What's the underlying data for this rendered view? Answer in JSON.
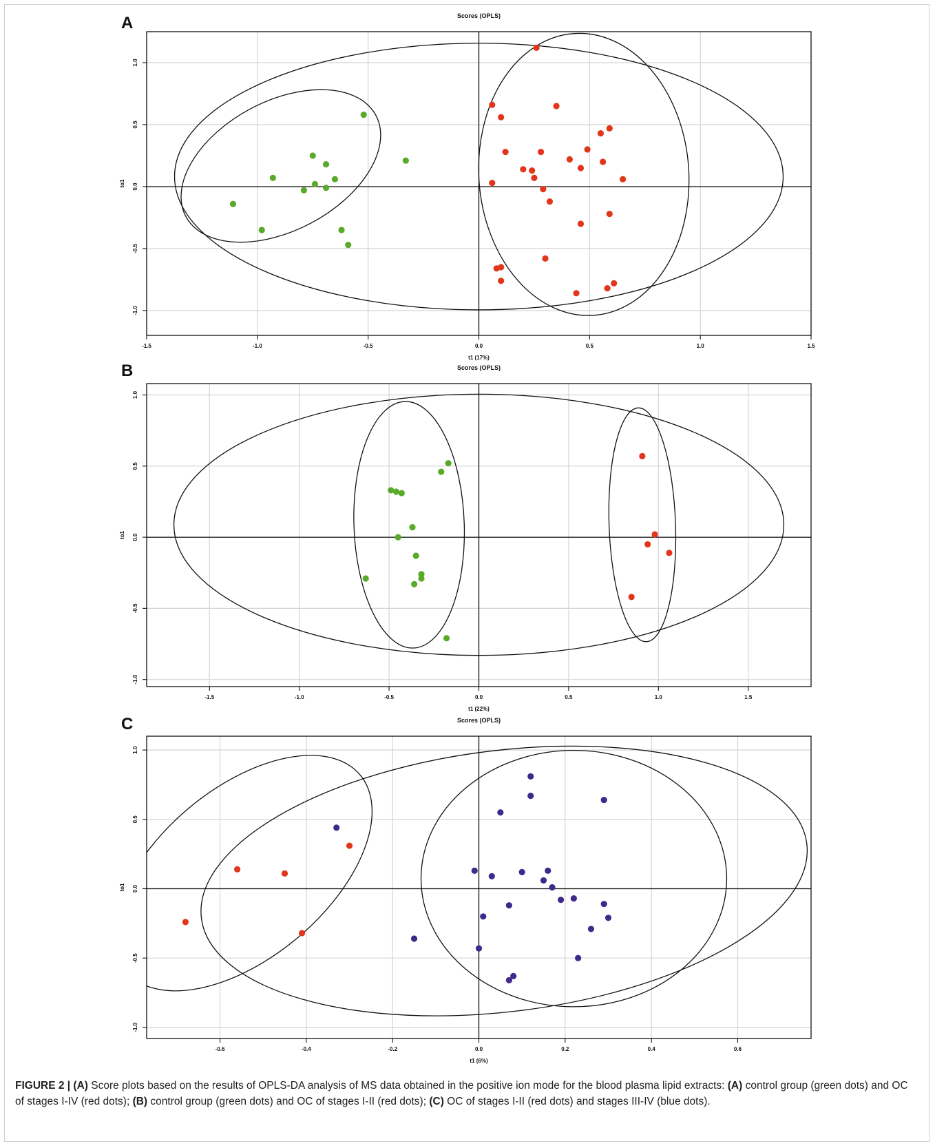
{
  "chart_data": [
    {
      "id": "A",
      "panel_letter": "A",
      "type": "scatter",
      "title": "Scores (OPLS)",
      "xlabel": "t1 (17%)",
      "ylabel": "to1",
      "xlim": [
        -1.5,
        1.5
      ],
      "ylim": [
        -1.2,
        1.25
      ],
      "xticks": [
        -1.5,
        -1.0,
        -0.5,
        0.0,
        0.5,
        1.0,
        1.5
      ],
      "yticks": [
        -1.0,
        -0.5,
        0.0,
        0.5,
        1.0
      ],
      "grid": true,
      "series": [
        {
          "color": "#5aaa2a",
          "points": [
            [
              -0.52,
              0.58
            ],
            [
              -0.33,
              0.21
            ],
            [
              -0.75,
              0.25
            ],
            [
              -0.69,
              0.18
            ],
            [
              -0.93,
              0.07
            ],
            [
              -0.65,
              0.06
            ],
            [
              -0.74,
              0.02
            ],
            [
              -0.69,
              -0.01
            ],
            [
              -0.79,
              -0.03
            ],
            [
              -1.11,
              -0.14
            ],
            [
              -0.98,
              -0.35
            ],
            [
              -0.62,
              -0.35
            ],
            [
              -0.59,
              -0.47
            ]
          ]
        },
        {
          "color": "#e2361a",
          "points": [
            [
              0.26,
              1.12
            ],
            [
              0.06,
              0.66
            ],
            [
              0.35,
              0.65
            ],
            [
              0.1,
              0.56
            ],
            [
              0.59,
              0.47
            ],
            [
              0.55,
              0.43
            ],
            [
              0.12,
              0.28
            ],
            [
              0.28,
              0.28
            ],
            [
              0.49,
              0.3
            ],
            [
              0.41,
              0.22
            ],
            [
              0.56,
              0.2
            ],
            [
              0.2,
              0.14
            ],
            [
              0.24,
              0.13
            ],
            [
              0.46,
              0.15
            ],
            [
              0.25,
              0.07
            ],
            [
              0.65,
              0.06
            ],
            [
              0.06,
              0.03
            ],
            [
              0.29,
              -0.02
            ],
            [
              0.32,
              -0.12
            ],
            [
              0.59,
              -0.22
            ],
            [
              0.46,
              -0.3
            ],
            [
              0.3,
              -0.58
            ],
            [
              0.08,
              -0.66
            ],
            [
              0.1,
              -0.65
            ],
            [
              0.1,
              -0.76
            ],
            [
              0.61,
              -0.78
            ],
            [
              0.58,
              -0.82
            ],
            [
              0.44,
              -0.86
            ]
          ]
        }
      ]
    },
    {
      "id": "B",
      "panel_letter": "B",
      "type": "scatter",
      "title": "Scores (OPLS)",
      "xlabel": "t1 (22%)",
      "ylabel": "to1",
      "xlim": [
        -1.85,
        1.85
      ],
      "ylim": [
        -1.05,
        1.08
      ],
      "xticks": [
        -1.5,
        -1.0,
        -0.5,
        0.0,
        0.5,
        1.0,
        1.5
      ],
      "yticks": [
        -1.0,
        -0.5,
        0.0,
        0.5,
        1.0
      ],
      "grid": true,
      "series": [
        {
          "color": "#5aaa2a",
          "points": [
            [
              -0.17,
              0.52
            ],
            [
              -0.21,
              0.46
            ],
            [
              -0.49,
              0.33
            ],
            [
              -0.46,
              0.32
            ],
            [
              -0.43,
              0.31
            ],
            [
              -0.37,
              0.07
            ],
            [
              -0.45,
              0.0
            ],
            [
              -0.35,
              -0.13
            ],
            [
              -0.32,
              -0.26
            ],
            [
              -0.32,
              -0.29
            ],
            [
              -0.63,
              -0.29
            ],
            [
              -0.36,
              -0.33
            ],
            [
              -0.18,
              -0.71
            ]
          ]
        },
        {
          "color": "#e2361a",
          "points": [
            [
              0.91,
              0.57
            ],
            [
              0.98,
              0.02
            ],
            [
              0.94,
              -0.05
            ],
            [
              1.06,
              -0.11
            ],
            [
              0.85,
              -0.42
            ]
          ]
        }
      ]
    },
    {
      "id": "C",
      "panel_letter": "C",
      "type": "scatter",
      "title": "Scores (OPLS)",
      "xlabel": "t1 (6%)",
      "ylabel": "to1",
      "xlim": [
        -0.77,
        0.77
      ],
      "ylim": [
        -1.08,
        1.1
      ],
      "xticks": [
        -0.6,
        -0.4,
        -0.2,
        0.0,
        0.2,
        0.4,
        0.6
      ],
      "yticks": [
        -1.0,
        -0.5,
        0.0,
        0.5,
        1.0
      ],
      "grid": true,
      "series": [
        {
          "color": "#e2361a",
          "points": [
            [
              -0.68,
              -0.24
            ],
            [
              -0.56,
              0.14
            ],
            [
              -0.45,
              0.11
            ],
            [
              -0.41,
              -0.32
            ],
            [
              -0.3,
              0.31
            ]
          ]
        },
        {
          "color": "#3f2a8c",
          "points": [
            [
              -0.33,
              0.44
            ],
            [
              -0.15,
              -0.36
            ],
            [
              -0.01,
              0.13
            ],
            [
              0.0,
              -0.43
            ],
            [
              0.01,
              -0.2
            ],
            [
              0.03,
              0.09
            ],
            [
              0.05,
              0.55
            ],
            [
              0.07,
              -0.12
            ],
            [
              0.07,
              -0.66
            ],
            [
              0.08,
              -0.63
            ],
            [
              0.1,
              0.12
            ],
            [
              0.12,
              0.81
            ],
            [
              0.12,
              0.67
            ],
            [
              0.15,
              0.06
            ],
            [
              0.16,
              0.13
            ],
            [
              0.17,
              0.01
            ],
            [
              0.19,
              -0.08
            ],
            [
              0.22,
              -0.07
            ],
            [
              0.23,
              -0.5
            ],
            [
              0.26,
              -0.29
            ],
            [
              0.29,
              0.64
            ],
            [
              0.29,
              -0.11
            ],
            [
              0.3,
              -0.21
            ]
          ]
        }
      ]
    }
  ],
  "caption": {
    "label": "FIGURE 2 | (A)",
    "segments": [
      {
        "bold": true,
        "text": "FIGURE 2 | (A)"
      },
      {
        "bold": false,
        "text": " Score plots based on the results of OPLS-DA analysis of MS data obtained in the positive ion mode for the blood plasma lipid extracts: "
      },
      {
        "bold": true,
        "text": "(A)"
      },
      {
        "bold": false,
        "text": " control group (green dots) and OC of stages I-IV (red dots); "
      },
      {
        "bold": true,
        "text": "(B)"
      },
      {
        "bold": false,
        "text": " control group (green dots) and OC of stages I-II (red dots); "
      },
      {
        "bold": true,
        "text": "(C)"
      },
      {
        "bold": false,
        "text": " OC of stages I-II (red dots) and stages III-IV (blue dots)."
      }
    ]
  }
}
